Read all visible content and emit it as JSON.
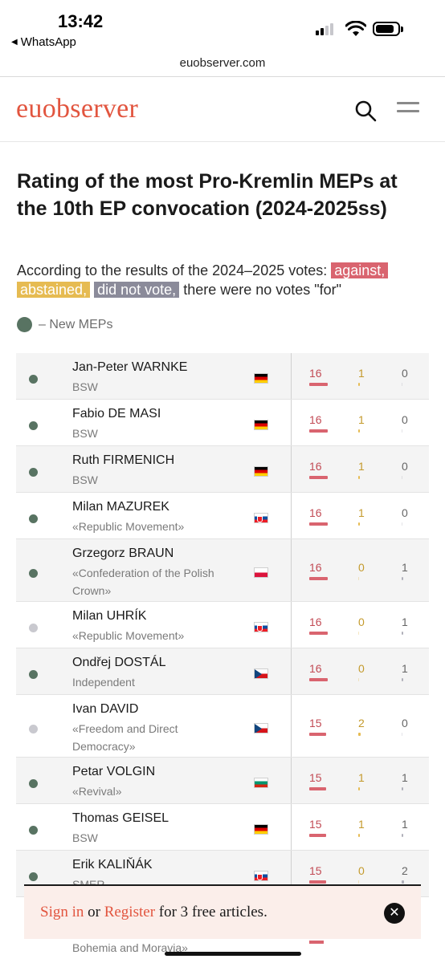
{
  "status_bar": {
    "time": "13:42",
    "back_app": "WhatsApp",
    "icons": [
      "signal-icon",
      "wifi-icon",
      "battery-icon"
    ]
  },
  "browser": {
    "url": "euobserver.com"
  },
  "site": {
    "logo": "euobserver",
    "accent_color": "#e2553f",
    "icons": [
      "search-icon",
      "menu-icon"
    ]
  },
  "article": {
    "title": "Rating of the most Pro-Kremlin MEPs at the 10th EP convocation (2024-2025ss)",
    "legend_prefix": "According to the results of the 2024–2025 votes: ",
    "legend_against": "against,",
    "legend_abstained": "abstained,",
    "legend_not_voted": "did not vote,",
    "legend_suffix": " there were no votes \"for\"",
    "new_meps_label": "– New MEPs",
    "colors": {
      "against": "#d9646f",
      "abstained": "#e6bb52",
      "did_not_vote": "#8b8b9a",
      "new_mep": "#587362"
    }
  },
  "table": {
    "max_votes": 17,
    "rows": [
      {
        "name": "Jan-Peter WARNKE",
        "party": "BSW",
        "country": "DE",
        "new": true,
        "against": 16,
        "abstained": 1,
        "not_voted": 0
      },
      {
        "name": "Fabio DE MASI",
        "party": "BSW",
        "country": "DE",
        "new": true,
        "against": 16,
        "abstained": 1,
        "not_voted": 0
      },
      {
        "name": "Ruth FIRMENICH",
        "party": "BSW",
        "country": "DE",
        "new": true,
        "against": 16,
        "abstained": 1,
        "not_voted": 0
      },
      {
        "name": "Milan MAZUREK",
        "party": "«Republic Movement»",
        "country": "SK",
        "new": true,
        "against": 16,
        "abstained": 1,
        "not_voted": 0
      },
      {
        "name": "Grzegorz BRAUN",
        "party": "«Confederation of the Polish Crown»",
        "country": "PL",
        "new": true,
        "against": 16,
        "abstained": 0,
        "not_voted": 1
      },
      {
        "name": "Milan UHRÍK",
        "party": "«Republic Movement»",
        "country": "SK",
        "new": false,
        "against": 16,
        "abstained": 0,
        "not_voted": 1
      },
      {
        "name": "Ondřej DOSTÁL",
        "party": "Independent",
        "country": "CZ",
        "new": true,
        "against": 16,
        "abstained": 0,
        "not_voted": 1
      },
      {
        "name": "Ivan DAVID",
        "party": "«Freedom and Direct Democracy»",
        "country": "CZ",
        "new": false,
        "against": 15,
        "abstained": 2,
        "not_voted": 0
      },
      {
        "name": "Petar VOLGIN",
        "party": "«Revival»",
        "country": "BG",
        "new": true,
        "against": 15,
        "abstained": 1,
        "not_voted": 1
      },
      {
        "name": "Thomas GEISEL",
        "party": "BSW",
        "country": "DE",
        "new": true,
        "against": 15,
        "abstained": 1,
        "not_voted": 1
      },
      {
        "name": "Erik KALIŇÁK",
        "party": "SMER",
        "country": "SK",
        "new": true,
        "against": 15,
        "abstained": 0,
        "not_voted": 2
      }
    ]
  },
  "paywall": {
    "sign_in": "Sign in",
    "or": " or ",
    "register": "Register",
    "suffix": " for 3 free articles.",
    "close_label": "✕",
    "partial_text_below": "Bohemia and Moravia»"
  }
}
